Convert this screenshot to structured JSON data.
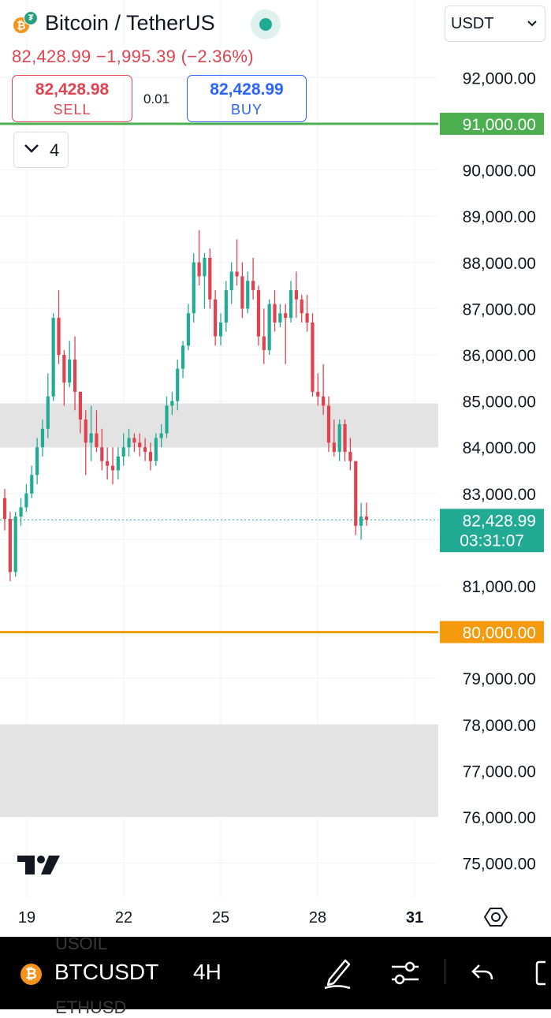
{
  "header": {
    "title": "Bitcoin / TetherUS",
    "coin_glyph": "₿",
    "quote_glyph": "₮",
    "change_text": "82,428.99 −1,995.39 (−2.36%)",
    "sell_price": "82,428.98",
    "sell_label": "SELL",
    "buy_price": "82,428.99",
    "buy_label": "BUY",
    "spread": "0.01",
    "indicator_count": "4",
    "currency": "USDT"
  },
  "colors": {
    "up": "#22ab94",
    "down": "#e0434f",
    "alert_green": "#4caf50",
    "alert_orange": "#f59a0c",
    "zone": "#e3e3e3",
    "grid": "#f0f3fa"
  },
  "chart_data": {
    "type": "candlestick",
    "interval": "4H",
    "x_tick_labels": [
      "19",
      "22",
      "25",
      "28",
      "31"
    ],
    "ylim": [
      74500,
      93500
    ],
    "y_ticks": [
      75000,
      76000,
      77000,
      78000,
      79000,
      80000,
      81000,
      82000,
      83000,
      84000,
      85000,
      86000,
      87000,
      88000,
      89000,
      90000,
      91000,
      92000
    ],
    "y_tick_labels": [
      "75,000.00",
      "76,000.00",
      "77,000.00",
      "78,000.00",
      "79,000.00",
      "80,000.00",
      "81,000.00",
      "82,000.00",
      "83,000.00",
      "84,000.00",
      "85,000.00",
      "86,000.00",
      "87,000.00",
      "88,000.00",
      "89,000.00",
      "90,000.00",
      "91,000.00",
      "92,000.00"
    ],
    "current_price": 82428.99,
    "current_price_label": "82,428.99",
    "countdown": "03:31:07",
    "horizontal_lines": [
      {
        "price": 91000,
        "label": "91,000.00",
        "color": "#4caf50"
      },
      {
        "price": 80000,
        "label": "80,000.00",
        "color": "#f59a0c"
      }
    ],
    "zones": [
      {
        "from": 84000,
        "to": 84950
      },
      {
        "from": 76000,
        "to": 78000
      }
    ],
    "candles": [
      [
        82900,
        83100,
        82200,
        82450
      ],
      [
        82450,
        82600,
        81100,
        81300
      ],
      [
        81300,
        82600,
        81200,
        82500
      ],
      [
        82500,
        82900,
        82300,
        82700
      ],
      [
        82700,
        83200,
        82600,
        83000
      ],
      [
        83000,
        83600,
        82900,
        83400
      ],
      [
        83400,
        84200,
        83200,
        84000
      ],
      [
        84000,
        84600,
        83800,
        84400
      ],
      [
        84400,
        85600,
        84200,
        85100
      ],
      [
        85100,
        86900,
        85000,
        86800
      ],
      [
        86800,
        87400,
        85800,
        86000
      ],
      [
        86000,
        86100,
        84900,
        85400
      ],
      [
        85400,
        86300,
        85300,
        85900
      ],
      [
        85900,
        86400,
        84800,
        85200
      ],
      [
        85200,
        85200,
        84300,
        84600
      ],
      [
        84600,
        84800,
        83400,
        84100
      ],
      [
        84100,
        84900,
        83700,
        84300
      ],
      [
        84300,
        84800,
        83900,
        84000
      ],
      [
        84000,
        84400,
        83500,
        83700
      ],
      [
        83700,
        84000,
        83300,
        83600
      ],
      [
        83600,
        84000,
        83200,
        83500
      ],
      [
        83500,
        84000,
        83300,
        83800
      ],
      [
        83800,
        84300,
        83600,
        84000
      ],
      [
        84000,
        84400,
        83800,
        84200
      ],
      [
        84200,
        84300,
        83900,
        84100
      ],
      [
        84100,
        84300,
        83800,
        84000
      ],
      [
        84000,
        84200,
        83700,
        83900
      ],
      [
        83900,
        84100,
        83500,
        83700
      ],
      [
        83700,
        84300,
        83600,
        84200
      ],
      [
        84200,
        84500,
        84000,
        84300
      ],
      [
        84300,
        85100,
        84200,
        84900
      ],
      [
        84900,
        85200,
        84700,
        85000
      ],
      [
        85000,
        85900,
        84800,
        85700
      ],
      [
        85700,
        86300,
        85500,
        86200
      ],
      [
        86200,
        87100,
        86100,
        86900
      ],
      [
        86900,
        88200,
        86700,
        88000
      ],
      [
        88000,
        88700,
        87500,
        87700
      ],
      [
        87700,
        88200,
        87000,
        88100
      ],
      [
        88100,
        88300,
        87000,
        87200
      ],
      [
        87200,
        87400,
        86200,
        86400
      ],
      [
        86400,
        86900,
        86200,
        86700
      ],
      [
        86700,
        87600,
        86500,
        87400
      ],
      [
        87400,
        88000,
        87100,
        87800
      ],
      [
        87800,
        88500,
        87500,
        87700
      ],
      [
        87700,
        88000,
        86800,
        87000
      ],
      [
        87000,
        87800,
        86900,
        87600
      ],
      [
        87600,
        88100,
        87200,
        87400
      ],
      [
        87400,
        87500,
        86200,
        86400
      ],
      [
        86400,
        87000,
        85800,
        86100
      ],
      [
        86100,
        87200,
        86000,
        87100
      ],
      [
        87100,
        87400,
        86500,
        86700
      ],
      [
        86700,
        87100,
        86600,
        86900
      ],
      [
        86900,
        87100,
        85800,
        86800
      ],
      [
        86800,
        87600,
        86700,
        87400
      ],
      [
        87400,
        87800,
        86800,
        87200
      ],
      [
        87200,
        87300,
        86700,
        86900
      ],
      [
        86900,
        87300,
        86500,
        86700
      ],
      [
        86700,
        86900,
        85100,
        85200
      ],
      [
        85200,
        85600,
        84900,
        85100
      ],
      [
        85100,
        85800,
        84700,
        84900
      ],
      [
        84900,
        85100,
        83900,
        84100
      ],
      [
        84100,
        84600,
        83800,
        83900
      ],
      [
        83900,
        84600,
        83700,
        84500
      ],
      [
        84500,
        84600,
        83700,
        83900
      ],
      [
        83900,
        84200,
        83500,
        83700
      ],
      [
        83700,
        83700,
        82100,
        82300
      ],
      [
        82300,
        82800,
        82000,
        82500
      ],
      [
        82500,
        82800,
        82300,
        82430
      ]
    ]
  },
  "bottombar": {
    "symbol": "BTCUSDT",
    "interval": "4H",
    "ghost_above": "USOIL",
    "ghost_below": "ETHUSD"
  }
}
